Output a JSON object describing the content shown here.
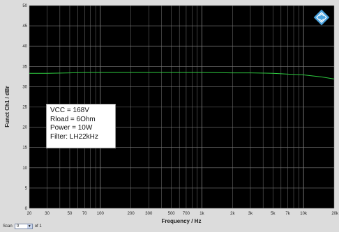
{
  "chart_data": {
    "type": "line",
    "xlabel": "Frequency / Hz",
    "ylabel": "Funct Ch1 / dBr",
    "xscale": "log",
    "xlim": [
      20,
      20000
    ],
    "ylim": [
      0,
      50
    ],
    "x_ticks": [
      {
        "v": 20,
        "label": "20"
      },
      {
        "v": 30,
        "label": "30"
      },
      {
        "v": 50,
        "label": "50"
      },
      {
        "v": 70,
        "label": "70"
      },
      {
        "v": 100,
        "label": "100"
      },
      {
        "v": 200,
        "label": "200"
      },
      {
        "v": 300,
        "label": "300"
      },
      {
        "v": 500,
        "label": "500"
      },
      {
        "v": 700,
        "label": "700"
      },
      {
        "v": 1000,
        "label": "1k"
      },
      {
        "v": 2000,
        "label": "2k"
      },
      {
        "v": 3000,
        "label": "3k"
      },
      {
        "v": 5000,
        "label": "5k"
      },
      {
        "v": 7000,
        "label": "7k"
      },
      {
        "v": 10000,
        "label": "10k"
      },
      {
        "v": 20000,
        "label": "20k"
      }
    ],
    "y_ticks": [
      0,
      5,
      10,
      15,
      20,
      25,
      30,
      35,
      40,
      45,
      50
    ],
    "grid": true,
    "series": [
      {
        "color": "#2ecc40",
        "x": [
          20,
          30,
          50,
          70,
          100,
          200,
          300,
          500,
          700,
          1000,
          2000,
          3000,
          5000,
          7000,
          10000,
          15000,
          20000
        ],
        "y": [
          33.3,
          33.3,
          33.4,
          33.5,
          33.5,
          33.5,
          33.5,
          33.5,
          33.5,
          33.5,
          33.4,
          33.4,
          33.3,
          33.1,
          32.9,
          32.4,
          31.9
        ]
      }
    ],
    "annotation": {
      "lines": [
        "VCC = 168V",
        "Rload = 6Ohm",
        "Power = 10W",
        "Filter: LH22kHz"
      ]
    },
    "colors": {
      "plot_background": "#000000",
      "grid": "#7a7a7a",
      "frame": "#dcdcdc",
      "logo": "#4aa3df"
    },
    "logo_icon": "rohde-schwarz-diamond-icon"
  },
  "scan": {
    "label": "Scan",
    "value": "0",
    "of_text": "of 1"
  }
}
